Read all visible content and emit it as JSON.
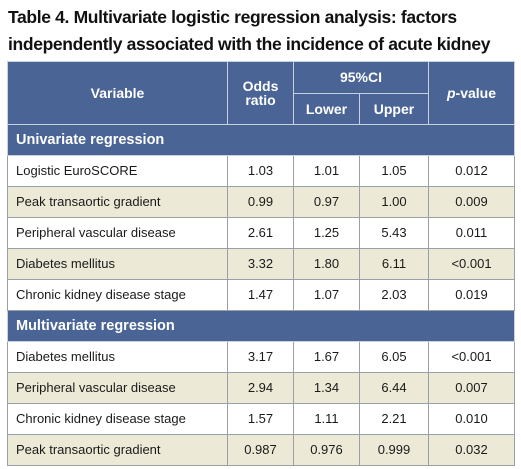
{
  "caption": {
    "line1": "Table 4. Multivariate logistic regression analysis: factors",
    "line2": "independently associated with the incidence of acute kidney injury."
  },
  "header": {
    "variable": "Variable",
    "odds_ratio_line1": "Odds",
    "odds_ratio_line2": "ratio",
    "ci": "95%CI",
    "lower": "Lower",
    "upper": "Upper",
    "p_italic": "p",
    "p_rest": "-value"
  },
  "sections": [
    {
      "title": "Univariate regression",
      "rows": [
        {
          "variable": "Logistic EuroSCORE",
          "or": "1.03",
          "lower": "1.01",
          "upper": "1.05",
          "p": "0.012"
        },
        {
          "variable": "Peak transaortic gradient",
          "or": "0.99",
          "lower": "0.97",
          "upper": "1.00",
          "p": "0.009"
        },
        {
          "variable": "Peripheral vascular disease",
          "or": "2.61",
          "lower": "1.25",
          "upper": "5.43",
          "p": "0.011"
        },
        {
          "variable": "Diabetes mellitus",
          "or": "3.32",
          "lower": "1.80",
          "upper": "6.11",
          "p": "<0.001"
        },
        {
          "variable": "Chronic kidney disease stage",
          "or": "1.47",
          "lower": "1.07",
          "upper": "2.03",
          "p": "0.019"
        }
      ]
    },
    {
      "title": "Multivariate regression",
      "rows": [
        {
          "variable": "Diabetes mellitus",
          "or": "3.17",
          "lower": "1.67",
          "upper": "6.05",
          "p": "<0.001"
        },
        {
          "variable": "Peripheral vascular disease",
          "or": "2.94",
          "lower": "1.34",
          "upper": "6.44",
          "p": "0.007"
        },
        {
          "variable": "Chronic kidney disease stage",
          "or": "1.57",
          "lower": "1.11",
          "upper": "2.21",
          "p": "0.010"
        },
        {
          "variable": "Peak transaortic gradient",
          "or": "0.987",
          "lower": "0.976",
          "upper": "0.999",
          "p": "0.032"
        }
      ]
    }
  ],
  "colors": {
    "header_bg": "#4a6496",
    "header_text": "#ffffff",
    "row_alt_bg": "#ecead6",
    "row_bg": "#ffffff"
  }
}
